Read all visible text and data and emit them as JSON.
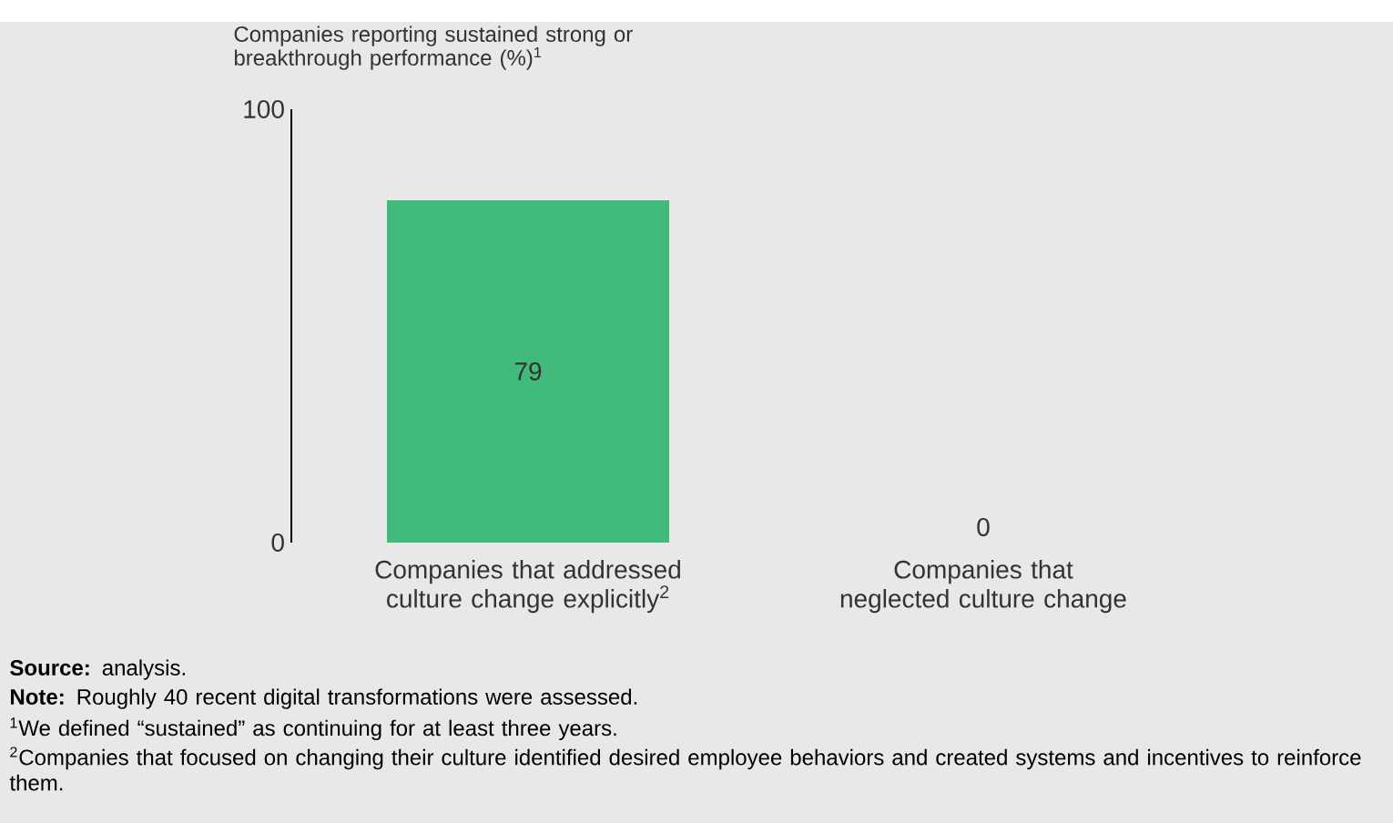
{
  "chart_data": {
    "type": "bar",
    "ylabel": "Companies reporting sustained strong or breakthrough performance (%)$^{1}$",
    "categories": [
      "Companies that addressed culture change explicitly$^{2}$",
      "Companies that neglected culture change"
    ],
    "values": [
      79,
      0
    ],
    "color": "#41bb7b",
    "data_labels": true,
    "ylim": [
      0,
      100
    ],
    "yticks": [
      0,
      100
    ],
    "annotations": [
      "**Source:** analysis.",
      "**Note:** Roughly 40 recent digital transformations were assessed.",
      "$^{1}$We defined “sustained” as continuing for at least three years.",
      "$^{2}$Companies that focused on changing their culture identified desired employee behaviors and created systems and incentives to reinforce them."
    ]
  }
}
